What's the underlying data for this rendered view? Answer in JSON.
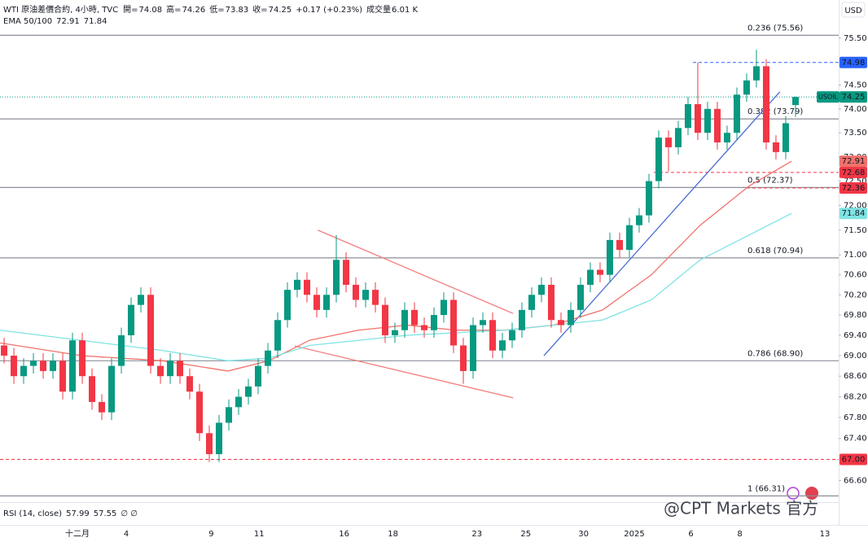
{
  "header": {
    "title": "WTI 原油差價合約, 4小時, TVC",
    "ohlc_labels": [
      "開=",
      "高=",
      "低=",
      "收="
    ],
    "change": "+0.17 (+0.23%)",
    "volume_label": "成交量",
    "volume": "6.01 K",
    "ema_label": "EMA 50/100",
    "currency": "USD",
    "symbol": "USOIL",
    "watermark": "@CPT Markets 官方"
  },
  "rsi": {
    "label": "RSI (14, close)",
    "values": [
      57.99,
      57.55
    ],
    "extra": "∅ ∅"
  },
  "chart_data": {
    "type": "candlestick",
    "log_scale": true,
    "up_color": "#089981",
    "down_color": "#f23645",
    "xlim": [
      -0.42,
      85.42
    ],
    "ylim": [
      66.27,
      76.32
    ],
    "yticks": [
      {
        "value": 75.5,
        "label": "75.50"
      },
      {
        "value": 74.5,
        "label": "74.50"
      },
      {
        "value": 74,
        "label": "74.00"
      },
      {
        "value": 73.5,
        "label": "73.50"
      },
      {
        "value": 73,
        "label": "73.00"
      },
      {
        "value": 72.5,
        "label": "72.50"
      },
      {
        "value": 72,
        "label": "72.00"
      },
      {
        "value": 71.5,
        "label": "71.50"
      },
      {
        "value": 71,
        "label": "71.00"
      },
      {
        "value": 70.6,
        "label": "70.60"
      },
      {
        "value": 70.2,
        "label": "70.20"
      },
      {
        "value": 69.8,
        "label": "69.80"
      },
      {
        "value": 69.4,
        "label": "69.40"
      },
      {
        "value": 69,
        "label": "69.00"
      },
      {
        "value": 68.6,
        "label": "68.60"
      },
      {
        "value": 68.2,
        "label": "68.20"
      },
      {
        "value": 67.8,
        "label": "67.80"
      },
      {
        "value": 67.4,
        "label": "67.40"
      },
      {
        "value": 66.6,
        "label": "66.60"
      }
    ],
    "xticks": [
      {
        "value": 7.5,
        "label": "十二月"
      },
      {
        "value": 12.5,
        "label": "4"
      },
      {
        "value": 21.2,
        "label": "9"
      },
      {
        "value": 26.1,
        "label": "11"
      },
      {
        "value": 34.8,
        "label": "16"
      },
      {
        "value": 39.8,
        "label": "18"
      },
      {
        "value": 48.4,
        "label": "23"
      },
      {
        "value": 53.4,
        "label": "25"
      },
      {
        "value": 59.3,
        "label": "30"
      },
      {
        "value": 64.5,
        "label": "2025"
      },
      {
        "value": 70.3,
        "label": "6"
      },
      {
        "value": 75.3,
        "label": "8"
      },
      {
        "value": 84,
        "label": "13"
      }
    ],
    "open": [
      69.2,
      69.0,
      68.6,
      68.8,
      68.9,
      68.7,
      68.9,
      68.3,
      69.3,
      68.6,
      68.1,
      67.9,
      68.8,
      69.4,
      70.0,
      70.2,
      68.8,
      68.6,
      68.9,
      68.6,
      68.3,
      67.5,
      67.1,
      67.7,
      68.0,
      68.2,
      68.4,
      68.8,
      69.1,
      69.7,
      70.3,
      70.5,
      70.2,
      69.9,
      70.2,
      70.9,
      70.4,
      70.1,
      70.3,
      70.0,
      69.4,
      69.5,
      69.9,
      69.6,
      69.5,
      69.8,
      70.1,
      69.2,
      68.7,
      69.6,
      69.7,
      69.1,
      69.3,
      69.5,
      69.9,
      70.2,
      70.4,
      69.7,
      69.6,
      69.9,
      70.4,
      70.7,
      70.6,
      71.3,
      71.1,
      71.6,
      71.8,
      72.5,
      73.4,
      73.2,
      73.6,
      74.1,
      73.5,
      74.0,
      73.3,
      73.5,
      74.3,
      74.6,
      74.9,
      73.3,
      73.1,
      74.08
    ],
    "high": [
      69.35,
      69.15,
      68.95,
      69.05,
      69.05,
      69.05,
      69.05,
      69.45,
      69.45,
      68.75,
      68.25,
      68.95,
      69.55,
      70.15,
      70.35,
      70.35,
      68.95,
      69.05,
      69.05,
      68.75,
      68.45,
      67.65,
      67.85,
      68.15,
      68.35,
      68.55,
      68.95,
      69.25,
      69.85,
      70.45,
      70.65,
      70.65,
      70.35,
      70.35,
      71.4,
      71.05,
      70.55,
      70.45,
      70.45,
      70.15,
      69.65,
      70.05,
      70.05,
      69.75,
      69.95,
      70.25,
      70.25,
      69.35,
      69.75,
      69.85,
      69.85,
      69.45,
      69.65,
      70.05,
      70.35,
      70.55,
      70.55,
      69.85,
      70.05,
      70.55,
      70.85,
      70.85,
      71.45,
      71.45,
      71.75,
      71.95,
      72.65,
      73.55,
      73.55,
      73.75,
      74.25,
      74.98,
      74.15,
      74.15,
      73.65,
      74.45,
      74.75,
      75.25,
      75.05,
      73.45,
      73.85,
      74.26
    ],
    "low": [
      68.85,
      68.45,
      68.45,
      68.65,
      68.55,
      68.55,
      68.15,
      68.15,
      68.45,
      67.95,
      67.75,
      67.75,
      68.65,
      69.25,
      69.85,
      68.65,
      68.45,
      68.45,
      68.45,
      68.15,
      67.35,
      66.95,
      66.95,
      67.55,
      67.85,
      68.05,
      68.25,
      68.65,
      68.95,
      69.55,
      70.15,
      70.05,
      69.75,
      69.75,
      70.05,
      70.25,
      69.95,
      69.95,
      69.85,
      69.25,
      69.25,
      69.35,
      69.45,
      69.35,
      69.35,
      69.65,
      69.05,
      68.45,
      68.55,
      69.45,
      68.95,
      68.95,
      69.15,
      69.35,
      69.75,
      70.05,
      69.55,
      69.45,
      69.45,
      69.75,
      70.25,
      70.45,
      70.45,
      70.95,
      70.95,
      71.45,
      71.65,
      72.35,
      72.7,
      73.05,
      73.45,
      73.35,
      73.35,
      73.15,
      73.15,
      73.35,
      74.15,
      74.45,
      73.15,
      72.95,
      72.95,
      73.83
    ],
    "close": [
      69.0,
      68.6,
      68.8,
      68.9,
      68.7,
      68.9,
      68.3,
      69.3,
      68.6,
      68.1,
      67.9,
      68.8,
      69.4,
      70.0,
      70.2,
      68.8,
      68.6,
      68.9,
      68.6,
      68.3,
      67.5,
      67.1,
      67.7,
      68.0,
      68.2,
      68.4,
      68.8,
      69.1,
      69.7,
      70.3,
      70.5,
      70.2,
      69.9,
      70.2,
      70.9,
      70.4,
      70.1,
      70.3,
      70.0,
      69.4,
      69.5,
      69.9,
      69.6,
      69.5,
      69.8,
      70.1,
      69.2,
      68.7,
      69.6,
      69.7,
      69.1,
      69.3,
      69.5,
      69.9,
      70.2,
      70.4,
      69.7,
      69.6,
      69.9,
      70.4,
      70.7,
      70.6,
      71.3,
      71.1,
      71.6,
      71.8,
      72.5,
      73.4,
      73.2,
      73.6,
      74.1,
      73.5,
      74.0,
      73.3,
      73.5,
      74.3,
      74.6,
      74.9,
      73.3,
      73.1,
      73.7,
      74.25
    ],
    "ema": [
      {
        "color": "#f0716a",
        "x": [
          -0.42,
          7.9,
          16.25,
          22.9,
          27.1,
          31.25,
          36.25,
          41.25,
          46.25,
          51.25,
          56.25,
          61.25,
          66.25,
          71.25,
          76.25,
          80.6
        ],
        "values": [
          69.25,
          69.0,
          68.9,
          68.7,
          68.9,
          69.3,
          69.5,
          69.6,
          69.5,
          69.5,
          69.6,
          69.9,
          70.6,
          71.6,
          72.4,
          72.91
        ]
      },
      {
        "color": "#7fe3e3",
        "x": [
          -0.42,
          7.9,
          16.25,
          22.9,
          27.1,
          31.25,
          36.25,
          41.25,
          46.25,
          51.25,
          56.25,
          61.25,
          66.25,
          71.25,
          76.25,
          80.6
        ],
        "values": [
          69.5,
          69.3,
          69.1,
          68.9,
          68.95,
          69.2,
          69.3,
          69.4,
          69.45,
          69.5,
          69.6,
          69.7,
          70.1,
          70.9,
          71.4,
          71.84
        ]
      }
    ],
    "fib_levels": [
      {
        "label": "0.236 (75.56)",
        "value": 75.56
      },
      {
        "label": "0.382 (73.79)",
        "value": 73.79
      },
      {
        "label": "0.5 (72.37)",
        "value": 72.37
      },
      {
        "label": "0.618 (70.94)",
        "value": 70.94
      },
      {
        "label": "0.786 (68.90)",
        "value": 68.9
      },
      {
        "label": "1 (66.31)",
        "value": 66.31
      }
    ],
    "price_lines": [
      {
        "value": 74.98,
        "x": 70.5,
        "color": "#2962ff"
      },
      {
        "value": 72.68,
        "x": 66.5,
        "color": "#f23645"
      },
      {
        "value": 72.36,
        "x": 76,
        "color": "#f23645"
      },
      {
        "value": 67,
        "label": "67.00",
        "x": -0.42,
        "color": "#f23645"
      }
    ],
    "trendlines": [
      {
        "color": "#f47c7c",
        "points": [
          [
            32.1,
            71.5
          ],
          [
            52.1,
            69.83
          ]
        ]
      },
      {
        "color": "#f47c7c",
        "points": [
          [
            29.75,
            69.19
          ],
          [
            52.1,
            68.18
          ]
        ]
      },
      {
        "color": "#4a6cd4",
        "points": [
          [
            55.25,
            69.0
          ],
          [
            79.4,
            74.36
          ]
        ]
      }
    ]
  }
}
